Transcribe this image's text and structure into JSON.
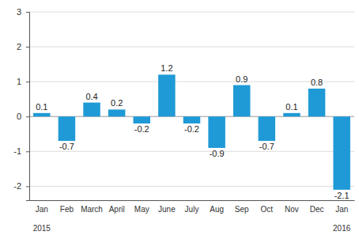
{
  "chart_data": {
    "type": "bar",
    "categories": [
      "Jan",
      "Feb",
      "March",
      "April",
      "May",
      "June",
      "July",
      "Aug",
      "Sep",
      "Oct",
      "Nov",
      "Dec",
      "Jan"
    ],
    "values": [
      0.1,
      -0.7,
      0.4,
      0.2,
      -0.2,
      1.2,
      -0.2,
      -0.9,
      0.9,
      -0.7,
      0.1,
      0.8,
      -2.1
    ],
    "color": "#1f9ad6",
    "ylim": [
      -2.4,
      3
    ],
    "yticks": [
      -2,
      -1,
      0,
      1,
      2,
      3
    ],
    "grid": true,
    "data_labels": true,
    "annotations": [
      {
        "text": "2015"
      },
      {
        "text": "2016"
      }
    ]
  }
}
